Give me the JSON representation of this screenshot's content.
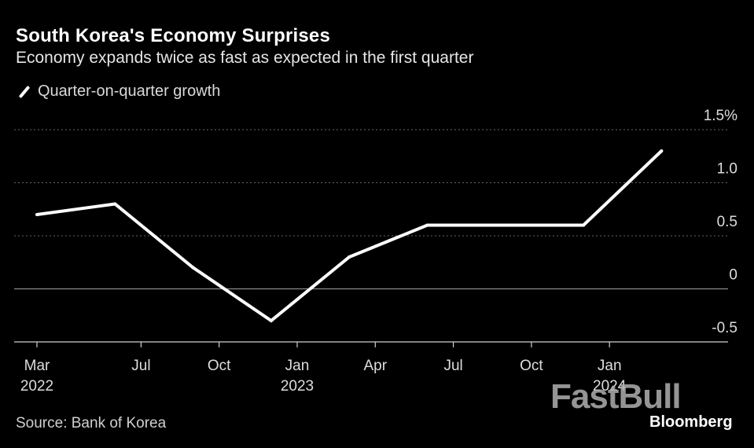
{
  "header": {
    "title": "South Korea's Economy Surprises",
    "subtitle": "Economy expands twice as fast as expected in the first quarter"
  },
  "legend": {
    "label": "Quarter-on-quarter growth",
    "icon": "line-swatch-icon"
  },
  "footer": {
    "source": "Source: Bank of Korea"
  },
  "watermark": {
    "brand": "FastBull",
    "sub": "Bloomberg"
  },
  "colors": {
    "background": "#000000",
    "line": "#ffffff",
    "grid": "#777777",
    "text": "#dddddd"
  },
  "chart_data": {
    "type": "line",
    "title": "South Korea's Economy Surprises",
    "subtitle": "Economy expands twice as fast as expected in the first quarter",
    "xlabel": "",
    "ylabel": "",
    "ylim": [
      -0.5,
      1.5
    ],
    "y_ticks": [
      1.5,
      1.0,
      0.5,
      0,
      -0.5
    ],
    "y_tick_labels": [
      "1.5%",
      "1.0",
      "0.5",
      "0",
      "-0.5"
    ],
    "grid": true,
    "legend_position": "top-left",
    "x_ticks": [
      {
        "month_index": 0,
        "label": "Mar",
        "year": "2022"
      },
      {
        "month_index": 4,
        "label": "Jul",
        "year": ""
      },
      {
        "month_index": 7,
        "label": "Oct",
        "year": ""
      },
      {
        "month_index": 10,
        "label": "Jan",
        "year": "2023"
      },
      {
        "month_index": 13,
        "label": "Apr",
        "year": ""
      },
      {
        "month_index": 16,
        "label": "Jul",
        "year": ""
      },
      {
        "month_index": 19,
        "label": "Oct",
        "year": ""
      },
      {
        "month_index": 22,
        "label": "Jan",
        "year": "2024"
      }
    ],
    "series": [
      {
        "name": "Quarter-on-quarter growth",
        "points": [
          {
            "period": "Q1 2022",
            "month_index": 0,
            "value": 0.7
          },
          {
            "period": "Q2 2022",
            "month_index": 3,
            "value": 0.8
          },
          {
            "period": "Q3 2022",
            "month_index": 6,
            "value": 0.2
          },
          {
            "period": "Q4 2022",
            "month_index": 9,
            "value": -0.3
          },
          {
            "period": "Q1 2023",
            "month_index": 12,
            "value": 0.3
          },
          {
            "period": "Q2 2023",
            "month_index": 15,
            "value": 0.6
          },
          {
            "period": "Q3 2023",
            "month_index": 18,
            "value": 0.6
          },
          {
            "period": "Q4 2023",
            "month_index": 21,
            "value": 0.6
          },
          {
            "period": "Q1 2024",
            "month_index": 24,
            "value": 1.3
          }
        ]
      }
    ]
  }
}
